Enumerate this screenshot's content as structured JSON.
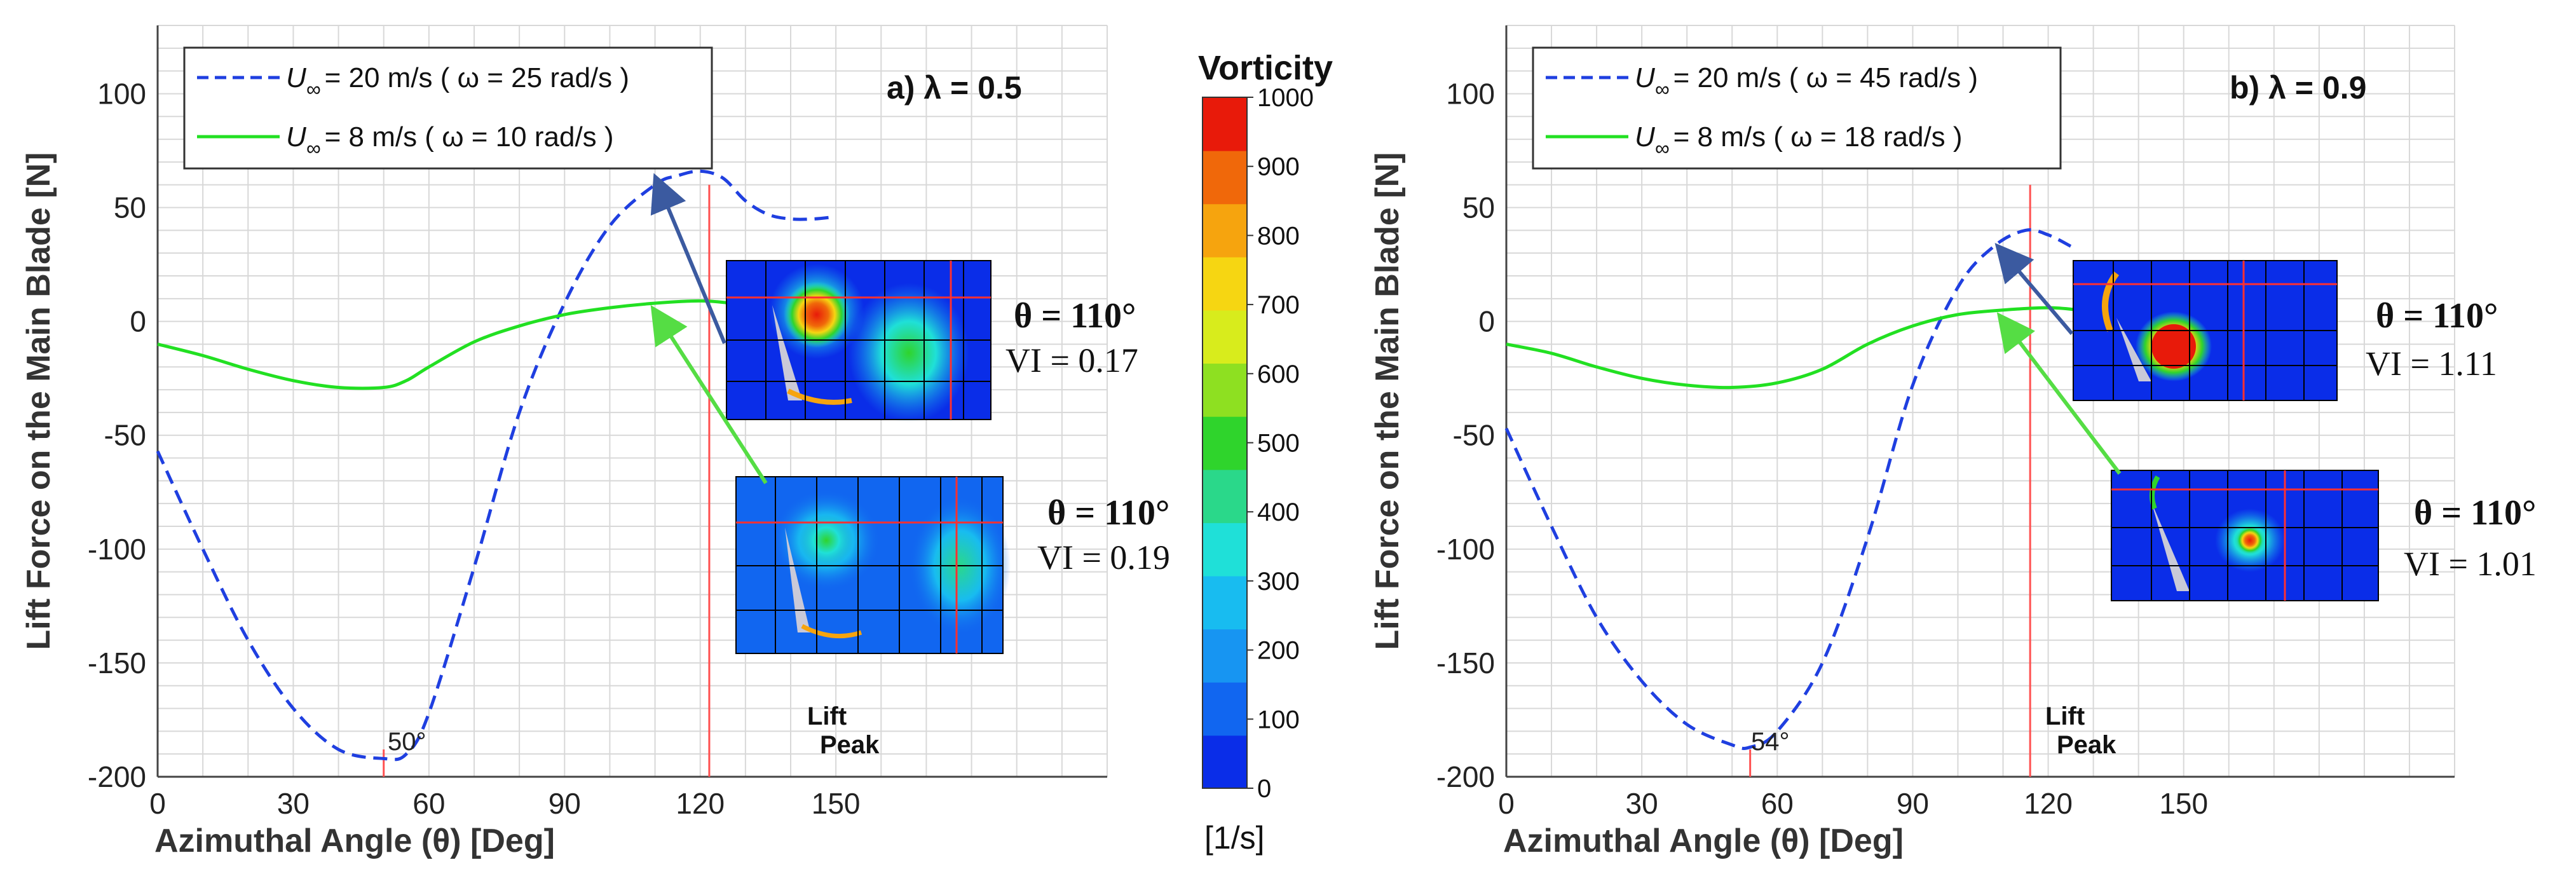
{
  "colors": {
    "u20": "#1f3fe0",
    "u8": "#22e022",
    "peak_line": "#ff5050",
    "grid": "#d8d8d8",
    "arrow_blue": "#3b5aa0",
    "arrow_green": "#55dd44"
  },
  "colorbar": {
    "title": "Vorticity",
    "unit": "[1/s]",
    "ticks": [
      "0",
      "100",
      "200",
      "300",
      "400",
      "500",
      "600",
      "700",
      "800",
      "900",
      "1000"
    ],
    "colors": [
      "#0a2de8",
      "#1166f0",
      "#1795f2",
      "#18bcf0",
      "#1fe0d8",
      "#2ad88a",
      "#2fd42c",
      "#8ee021",
      "#d8ec1c",
      "#f6d612",
      "#f6a40e",
      "#f0680a",
      "#e81a0a"
    ]
  },
  "chart_data": [
    {
      "type": "line",
      "panel_title": "a)  λ = 0.5",
      "xlabel": "Azimuthal Angle (θ)  [Deg]",
      "ylabel": "Lift Force on the Main Blade [N]",
      "xlim": [
        0,
        210
      ],
      "ylim": [
        -200,
        130
      ],
      "xticks": [
        "0",
        "30",
        "60",
        "90",
        "120",
        "150"
      ],
      "xtick_values": [
        0,
        30,
        60,
        90,
        120,
        150
      ],
      "yticks": [
        "100",
        "50",
        "0",
        "-50",
        "-100",
        "-150",
        "-200"
      ],
      "ytick_values": [
        100,
        50,
        0,
        -50,
        -100,
        -150,
        -200
      ],
      "grid": true,
      "legend_position": "top-left",
      "legend": [
        {
          "sym": "U",
          "sub": "∞",
          "text": "= 20 m/s  ( ω = 25 rad/s )"
        },
        {
          "sym": "U",
          "sub": "∞",
          "text": "=  8 m/s   ( ω = 10 rad/s )"
        }
      ],
      "series": [
        {
          "name": "U∞ = 20 m/s (ω = 25 rad/s)",
          "style": "dashed",
          "x": [
            0,
            10,
            20,
            30,
            40,
            50,
            55,
            60,
            70,
            80,
            90,
            100,
            110,
            115,
            120,
            125,
            130,
            135,
            140,
            145,
            150
          ],
          "y": [
            -57,
            -100,
            -140,
            -170,
            -188,
            -192,
            -190,
            -172,
            -108,
            -40,
            8,
            42,
            60,
            64,
            66,
            63,
            53,
            47,
            45,
            45,
            46
          ]
        },
        {
          "name": "U∞ = 8 m/s (ω = 10 rad/s)",
          "style": "solid",
          "x": [
            0,
            10,
            20,
            30,
            40,
            50,
            55,
            60,
            70,
            80,
            90,
            100,
            110,
            120,
            127
          ],
          "y": [
            -10,
            -15,
            -21,
            -26,
            -29,
            -29,
            -26,
            -20,
            -9,
            -2,
            3,
            6,
            8,
            9,
            8
          ]
        }
      ],
      "annotations": {
        "min_label": "50°",
        "min_x": 50,
        "peak_label_1": "Lift",
        "peak_label_2": "Peak",
        "peak_x": 122
      },
      "insets": [
        {
          "theta": "θ = 110°",
          "vi": "VI = 0.17"
        },
        {
          "theta": "θ = 110°",
          "vi": "VI = 0.19"
        }
      ]
    },
    {
      "type": "line",
      "panel_title": "b)  λ = 0.9",
      "xlabel": "Azimuthal Angle (θ)  [Deg]",
      "ylabel": "Lift Force on the Main Blade [N]",
      "xlim": [
        0,
        210
      ],
      "ylim": [
        -200,
        130
      ],
      "xticks": [
        "0",
        "30",
        "60",
        "90",
        "120",
        "150"
      ],
      "xtick_values": [
        0,
        30,
        60,
        90,
        120,
        150
      ],
      "yticks": [
        "100",
        "50",
        "0",
        "-50",
        "-100",
        "-150",
        "-200"
      ],
      "ytick_values": [
        100,
        50,
        0,
        -50,
        -100,
        -150,
        -200
      ],
      "grid": true,
      "legend_position": "top-left",
      "legend": [
        {
          "sym": "U",
          "sub": "∞",
          "text": "= 20 m/s  ( ω = 45 rad/s )"
        },
        {
          "sym": "U",
          "sub": "∞",
          "text": "=  8 m/s   ( ω = 18 rad/s )"
        }
      ],
      "series": [
        {
          "name": "U∞ = 20 m/s (ω = 45 rad/s)",
          "style": "dashed",
          "x": [
            0,
            10,
            20,
            30,
            40,
            50,
            54,
            60,
            70,
            80,
            90,
            100,
            108,
            115,
            120,
            125
          ],
          "y": [
            -47,
            -90,
            -130,
            -158,
            -177,
            -186,
            -187,
            -180,
            -150,
            -95,
            -28,
            15,
            33,
            40,
            38,
            33
          ]
        },
        {
          "name": "U∞ = 8 m/s (ω = 18 rad/s)",
          "style": "solid",
          "x": [
            0,
            10,
            20,
            30,
            40,
            50,
            60,
            70,
            80,
            90,
            100,
            110,
            120,
            127
          ],
          "y": [
            -10,
            -14,
            -20,
            -25,
            -28,
            -29,
            -27,
            -21,
            -10,
            -2,
            3,
            5,
            6,
            5
          ]
        }
      ],
      "annotations": {
        "min_label": "54°",
        "min_x": 54,
        "peak_label_1": "Lift",
        "peak_label_2": "Peak",
        "peak_x": 116
      },
      "insets": [
        {
          "theta": "θ = 110°",
          "vi": "VI = 1.11"
        },
        {
          "theta": "θ = 110°",
          "vi": "VI = 1.01"
        }
      ]
    }
  ]
}
